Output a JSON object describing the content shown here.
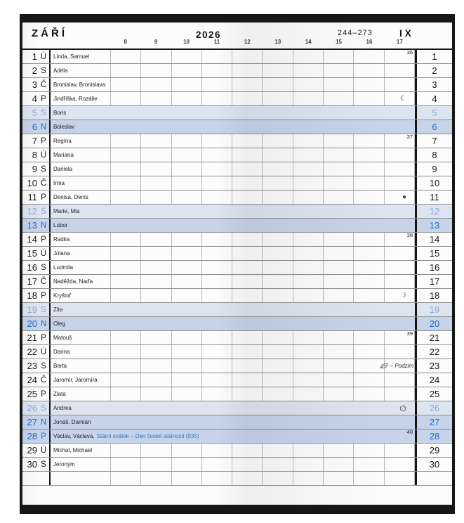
{
  "header": {
    "month_name": "ZÁŘÍ",
    "year": "2026",
    "day_of_year_range": "244–273",
    "month_roman": "IX",
    "hours": [
      "8",
      "9",
      "10",
      "11",
      "12",
      "13",
      "14",
      "15",
      "16",
      "17"
    ]
  },
  "colors": {
    "saturday_row_bg": "#dce4f0",
    "sunday_row_bg": "#c6d3e9",
    "saturday_text": "#8ea9d8",
    "sunday_text": "#1a6ed0",
    "holiday_text": "#2a77d3",
    "frame": "#171717"
  },
  "icons": {
    "last-quarter-moon": "☾",
    "new-moon": "●",
    "first-quarter-moon": "☽",
    "full-moon": "○",
    "autumn-leaf": "leaf"
  },
  "rows": [
    {
      "day": "1",
      "dow": "Ú",
      "names": "Linda, Samuel",
      "type": "weekday",
      "week": "36"
    },
    {
      "day": "2",
      "dow": "S",
      "names": "Adéla",
      "type": "weekday"
    },
    {
      "day": "3",
      "dow": "Č",
      "names": "Bronislav, Bronislava",
      "type": "weekday"
    },
    {
      "day": "4",
      "dow": "P",
      "names": "Jindřiška, Rozálie",
      "type": "weekday",
      "moon": "last-quarter-moon"
    },
    {
      "day": "5",
      "dow": "S",
      "names": "Boris",
      "type": "sat"
    },
    {
      "day": "6",
      "dow": "N",
      "names": "Boleslav",
      "type": "sun"
    },
    {
      "day": "7",
      "dow": "P",
      "names": "Regína",
      "type": "weekday",
      "week": "37"
    },
    {
      "day": "8",
      "dow": "Ú",
      "names": "Mariana",
      "type": "weekday"
    },
    {
      "day": "9",
      "dow": "S",
      "names": "Daniela",
      "type": "weekday"
    },
    {
      "day": "10",
      "dow": "Č",
      "names": "Irma",
      "type": "weekday"
    },
    {
      "day": "11",
      "dow": "P",
      "names": "Denisa, Denis",
      "type": "weekday",
      "moon": "new-moon"
    },
    {
      "day": "12",
      "dow": "S",
      "names": "Marie, Mia",
      "type": "sat"
    },
    {
      "day": "13",
      "dow": "N",
      "names": "Lubor",
      "type": "sun"
    },
    {
      "day": "14",
      "dow": "P",
      "names": "Radka",
      "type": "weekday",
      "week": "38"
    },
    {
      "day": "15",
      "dow": "Ú",
      "names": "Jolana",
      "type": "weekday"
    },
    {
      "day": "16",
      "dow": "S",
      "names": "Ludmila",
      "type": "weekday"
    },
    {
      "day": "17",
      "dow": "Č",
      "names": "Naděžda, Naďa",
      "type": "weekday"
    },
    {
      "day": "18",
      "dow": "P",
      "names": "Kryštof",
      "type": "weekday",
      "moon": "first-quarter-moon"
    },
    {
      "day": "19",
      "dow": "S",
      "names": "Zita",
      "type": "sat"
    },
    {
      "day": "20",
      "dow": "N",
      "names": "Oleg",
      "type": "sun"
    },
    {
      "day": "21",
      "dow": "P",
      "names": "Matouš",
      "type": "weekday",
      "week": "39"
    },
    {
      "day": "22",
      "dow": "Ú",
      "names": "Darina",
      "type": "weekday"
    },
    {
      "day": "23",
      "dow": "S",
      "names": "Berta",
      "type": "weekday",
      "season": "– Podzim"
    },
    {
      "day": "24",
      "dow": "Č",
      "names": "Jaromír, Jaromíra",
      "type": "weekday"
    },
    {
      "day": "25",
      "dow": "P",
      "names": "Zlata",
      "type": "weekday"
    },
    {
      "day": "26",
      "dow": "S",
      "names": "Andrea",
      "type": "sat",
      "moon": "full-moon"
    },
    {
      "day": "27",
      "dow": "N",
      "names": "Jonáš, Damián",
      "type": "sun"
    },
    {
      "day": "28",
      "dow": "P",
      "names": "Václav, Václava,",
      "type": "holiday",
      "week": "40",
      "holiday": "Státní svátek – Den české státnosti (935)"
    },
    {
      "day": "29",
      "dow": "Ú",
      "names": "Michal, Michael",
      "type": "weekday"
    },
    {
      "day": "30",
      "dow": "S",
      "names": "Jeroným",
      "type": "weekday"
    },
    {
      "day": "",
      "dow": "",
      "names": "",
      "type": "empty"
    }
  ]
}
